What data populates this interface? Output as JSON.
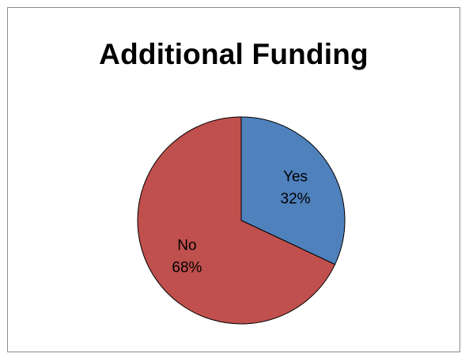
{
  "chart_data": {
    "type": "pie",
    "title": "Additional Funding",
    "categories": [
      "Yes",
      "No"
    ],
    "values": [
      32,
      68
    ],
    "labels": [
      "32%",
      "68%"
    ],
    "colors": [
      "#4f81bd",
      "#c0504d"
    ],
    "legend": "none"
  }
}
